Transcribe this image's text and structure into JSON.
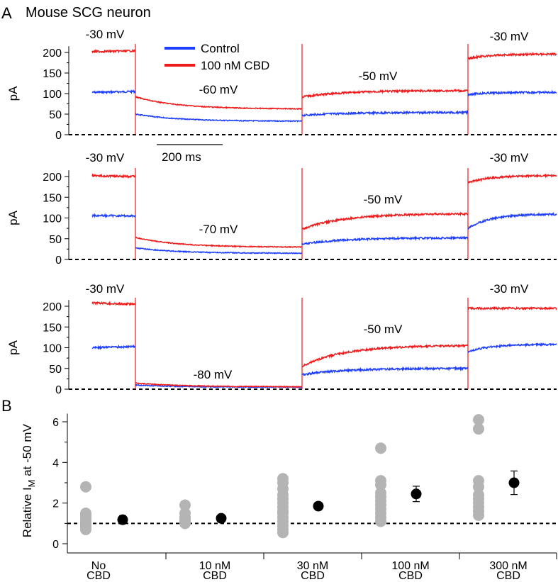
{
  "figure": {
    "panel_a_letter": "A",
    "panel_b_letter": "B",
    "title": "Mouse SCG neuron"
  },
  "colors": {
    "control": "#1f3fff",
    "cbd": "#ee1c1c",
    "individual_points": "#b4b4b4",
    "mean_points": "#000000"
  },
  "chart_data": [
    {
      "type": "line",
      "panel": "A1",
      "ylabel": "pA",
      "yticks": [
        0,
        50,
        100,
        150,
        200
      ],
      "ylim": [
        0,
        215
      ],
      "legend": {
        "placement": "top-center",
        "entries": [
          "Control",
          "100 nM CBD"
        ]
      },
      "scale_bar": "200 ms",
      "series": [
        {
          "name": "Control",
          "segments": [
            {
              "voltage": "-30 mV",
              "start": 103,
              "end": 105
            },
            {
              "voltage": "-60 mV",
              "start": 50,
              "end": 33
            },
            {
              "voltage": "-50 mV",
              "start": 47,
              "end": 54
            },
            {
              "voltage": "-30 mV",
              "start": 98,
              "end": 103
            }
          ]
        },
        {
          "name": "100 nM CBD",
          "segments": [
            {
              "voltage": "-30 mV",
              "start": 202,
              "end": 204
            },
            {
              "voltage": "-60 mV",
              "start": 92,
              "end": 63
            },
            {
              "voltage": "-50 mV",
              "start": 92,
              "end": 107
            },
            {
              "voltage": "-30 mV",
              "start": 185,
              "end": 196
            }
          ]
        }
      ],
      "voltage_labels": [
        "-30 mV",
        "-60 mV",
        "-50 mV",
        "-30 mV"
      ]
    },
    {
      "type": "line",
      "panel": "A2",
      "ylabel": "pA",
      "yticks": [
        0,
        50,
        100,
        150,
        200
      ],
      "ylim": [
        0,
        215
      ],
      "series": [
        {
          "name": "Control",
          "segments": [
            {
              "voltage": "-30 mV",
              "start": 106,
              "end": 105
            },
            {
              "voltage": "-70 mV",
              "start": 28,
              "end": 15
            },
            {
              "voltage": "-50 mV",
              "start": 37,
              "end": 52
            },
            {
              "voltage": "-30 mV",
              "start": 75,
              "end": 109
            }
          ]
        },
        {
          "name": "100 nM CBD",
          "segments": [
            {
              "voltage": "-30 mV",
              "start": 202,
              "end": 200
            },
            {
              "voltage": "-70 mV",
              "start": 53,
              "end": 30
            },
            {
              "voltage": "-50 mV",
              "start": 73,
              "end": 110
            },
            {
              "voltage": "-30 mV",
              "start": 185,
              "end": 202
            }
          ]
        }
      ],
      "voltage_labels": [
        "-30 mV",
        "-70 mV",
        "-50 mV",
        "-30 mV"
      ]
    },
    {
      "type": "line",
      "panel": "A3",
      "ylabel": "pA",
      "yticks": [
        0,
        50,
        100,
        150,
        200
      ],
      "ylim": [
        0,
        215
      ],
      "series": [
        {
          "name": "Control",
          "segments": [
            {
              "voltage": "-30 mV",
              "start": 100,
              "end": 103
            },
            {
              "voltage": "-80 mV",
              "start": 10,
              "end": 5
            },
            {
              "voltage": "-50 mV",
              "start": 35,
              "end": 50
            },
            {
              "voltage": "-30 mV",
              "start": 90,
              "end": 108
            }
          ]
        },
        {
          "name": "100 nM CBD",
          "segments": [
            {
              "voltage": "-30 mV",
              "start": 208,
              "end": 205
            },
            {
              "voltage": "-80 mV",
              "start": 15,
              "end": 6
            },
            {
              "voltage": "-50 mV",
              "start": 55,
              "end": 105
            },
            {
              "voltage": "-30 mV",
              "start": 195,
              "end": 195
            }
          ]
        }
      ],
      "voltage_labels": [
        "-30 mV",
        "-80 mV",
        "-50 mV",
        "-30 mV"
      ]
    },
    {
      "type": "scatter",
      "panel": "B",
      "ylabel_main": "Relative I",
      "ylabel_sub": "M",
      "ylabel_tail": " at -50 mV",
      "ylim": [
        0,
        6.4
      ],
      "yticks": [
        0,
        2,
        4,
        6
      ],
      "reference_line": 1,
      "categories": [
        {
          "line1": "No",
          "line2": "CBD"
        },
        {
          "line1": "10 nM",
          "line2": "CBD"
        },
        {
          "line1": "30 nM",
          "line2": "CBD"
        },
        {
          "line1": "100 nM",
          "line2": "CBD"
        },
        {
          "line1": "300 nM",
          "line2": "CBD"
        }
      ],
      "individual": [
        [
          2.8,
          1.5,
          1.4,
          1.3,
          1.2,
          1.1,
          1.0,
          0.9,
          0.8,
          0.7
        ],
        [
          1.9,
          1.5,
          1.3,
          1.2,
          1.1,
          1.0
        ],
        [
          3.2,
          3.0,
          2.7,
          2.4,
          2.2,
          2.0,
          1.8,
          1.6,
          1.5,
          1.3,
          1.1,
          0.9,
          0.7,
          0.55
        ],
        [
          4.7,
          3.1,
          2.9,
          2.5,
          2.3,
          2.1,
          1.9,
          1.7,
          1.5,
          1.3,
          1.1
        ],
        [
          6.1,
          5.65,
          3.1,
          2.8,
          2.4,
          2.2,
          2.0,
          1.8,
          1.6,
          1.4
        ]
      ],
      "means": [
        1.18,
        1.25,
        1.85,
        2.45,
        3.0
      ],
      "errors": [
        0.2,
        0.14,
        0.18,
        0.38,
        0.58
      ]
    }
  ]
}
